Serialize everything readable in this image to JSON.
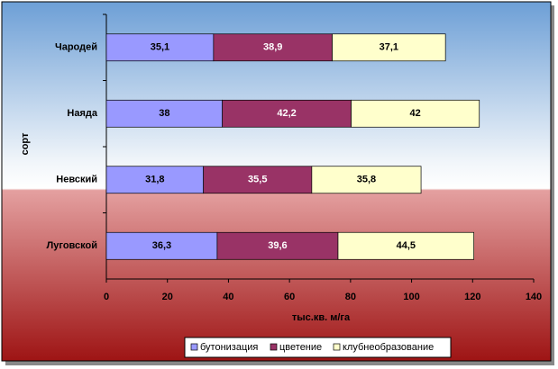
{
  "chart_data": {
    "type": "stacked_bar_horizontal",
    "y_axis_label": "сорт",
    "x_axis_label": "тыс.кв. м/га",
    "categories": [
      "Чародей",
      "Наяда",
      "Невский",
      "Луговской"
    ],
    "series": [
      {
        "name": "бутонизация",
        "color": "#9999ff",
        "values": [
          35.1,
          38,
          31.8,
          36.3
        ],
        "value_labels": [
          "35,1",
          "38",
          "31,8",
          "36,3"
        ]
      },
      {
        "name": "цветение",
        "color": "#993366",
        "values": [
          38.9,
          42.2,
          35.5,
          39.6
        ],
        "value_labels": [
          "38,9",
          "42,2",
          "35,5",
          "39,6"
        ]
      },
      {
        "name": "клубнеобразование",
        "color": "#ffffcc",
        "values": [
          37.1,
          42,
          35.8,
          44.5
        ],
        "value_labels": [
          "37,1",
          "42",
          "35,8",
          "44,5"
        ]
      }
    ],
    "xlim": [
      0,
      140
    ],
    "xticks": [
      0,
      20,
      40,
      60,
      80,
      100,
      120,
      140
    ],
    "legend": "bottom"
  }
}
